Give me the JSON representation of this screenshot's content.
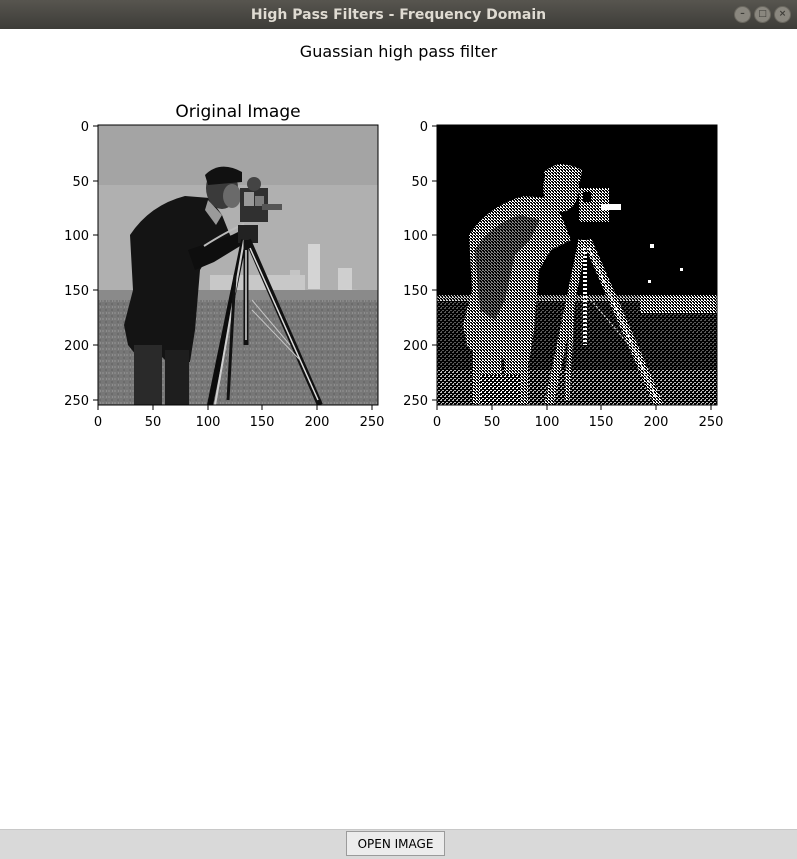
{
  "window": {
    "title": "High Pass Filters - Frequency Domain",
    "controls": [
      "minimize-icon",
      "maximize-icon",
      "close-icon"
    ]
  },
  "figure": {
    "suptitle": "Guassian high pass filter"
  },
  "panels": [
    {
      "name": "original",
      "title": "Original Image",
      "x_ticks": [
        "0",
        "50",
        "100",
        "150",
        "200",
        "250"
      ],
      "y_ticks": [
        "0",
        "50",
        "100",
        "150",
        "200",
        "250"
      ],
      "content": "grayscale photo of cameraman with tripod camera"
    },
    {
      "name": "filtered",
      "title": "",
      "x_ticks": [
        "0",
        "50",
        "100",
        "150",
        "200",
        "250"
      ],
      "y_ticks": [
        "0",
        "50",
        "100",
        "150",
        "200",
        "250"
      ],
      "content": "binary high-pass edge response of cameraman image"
    }
  ],
  "buttons": {
    "open_image": "OPEN IMAGE"
  },
  "colors": {
    "titlebar": "#3d3c38",
    "titlebar_text": "#dfdbd2",
    "bottombar": "#d9d9d9"
  }
}
